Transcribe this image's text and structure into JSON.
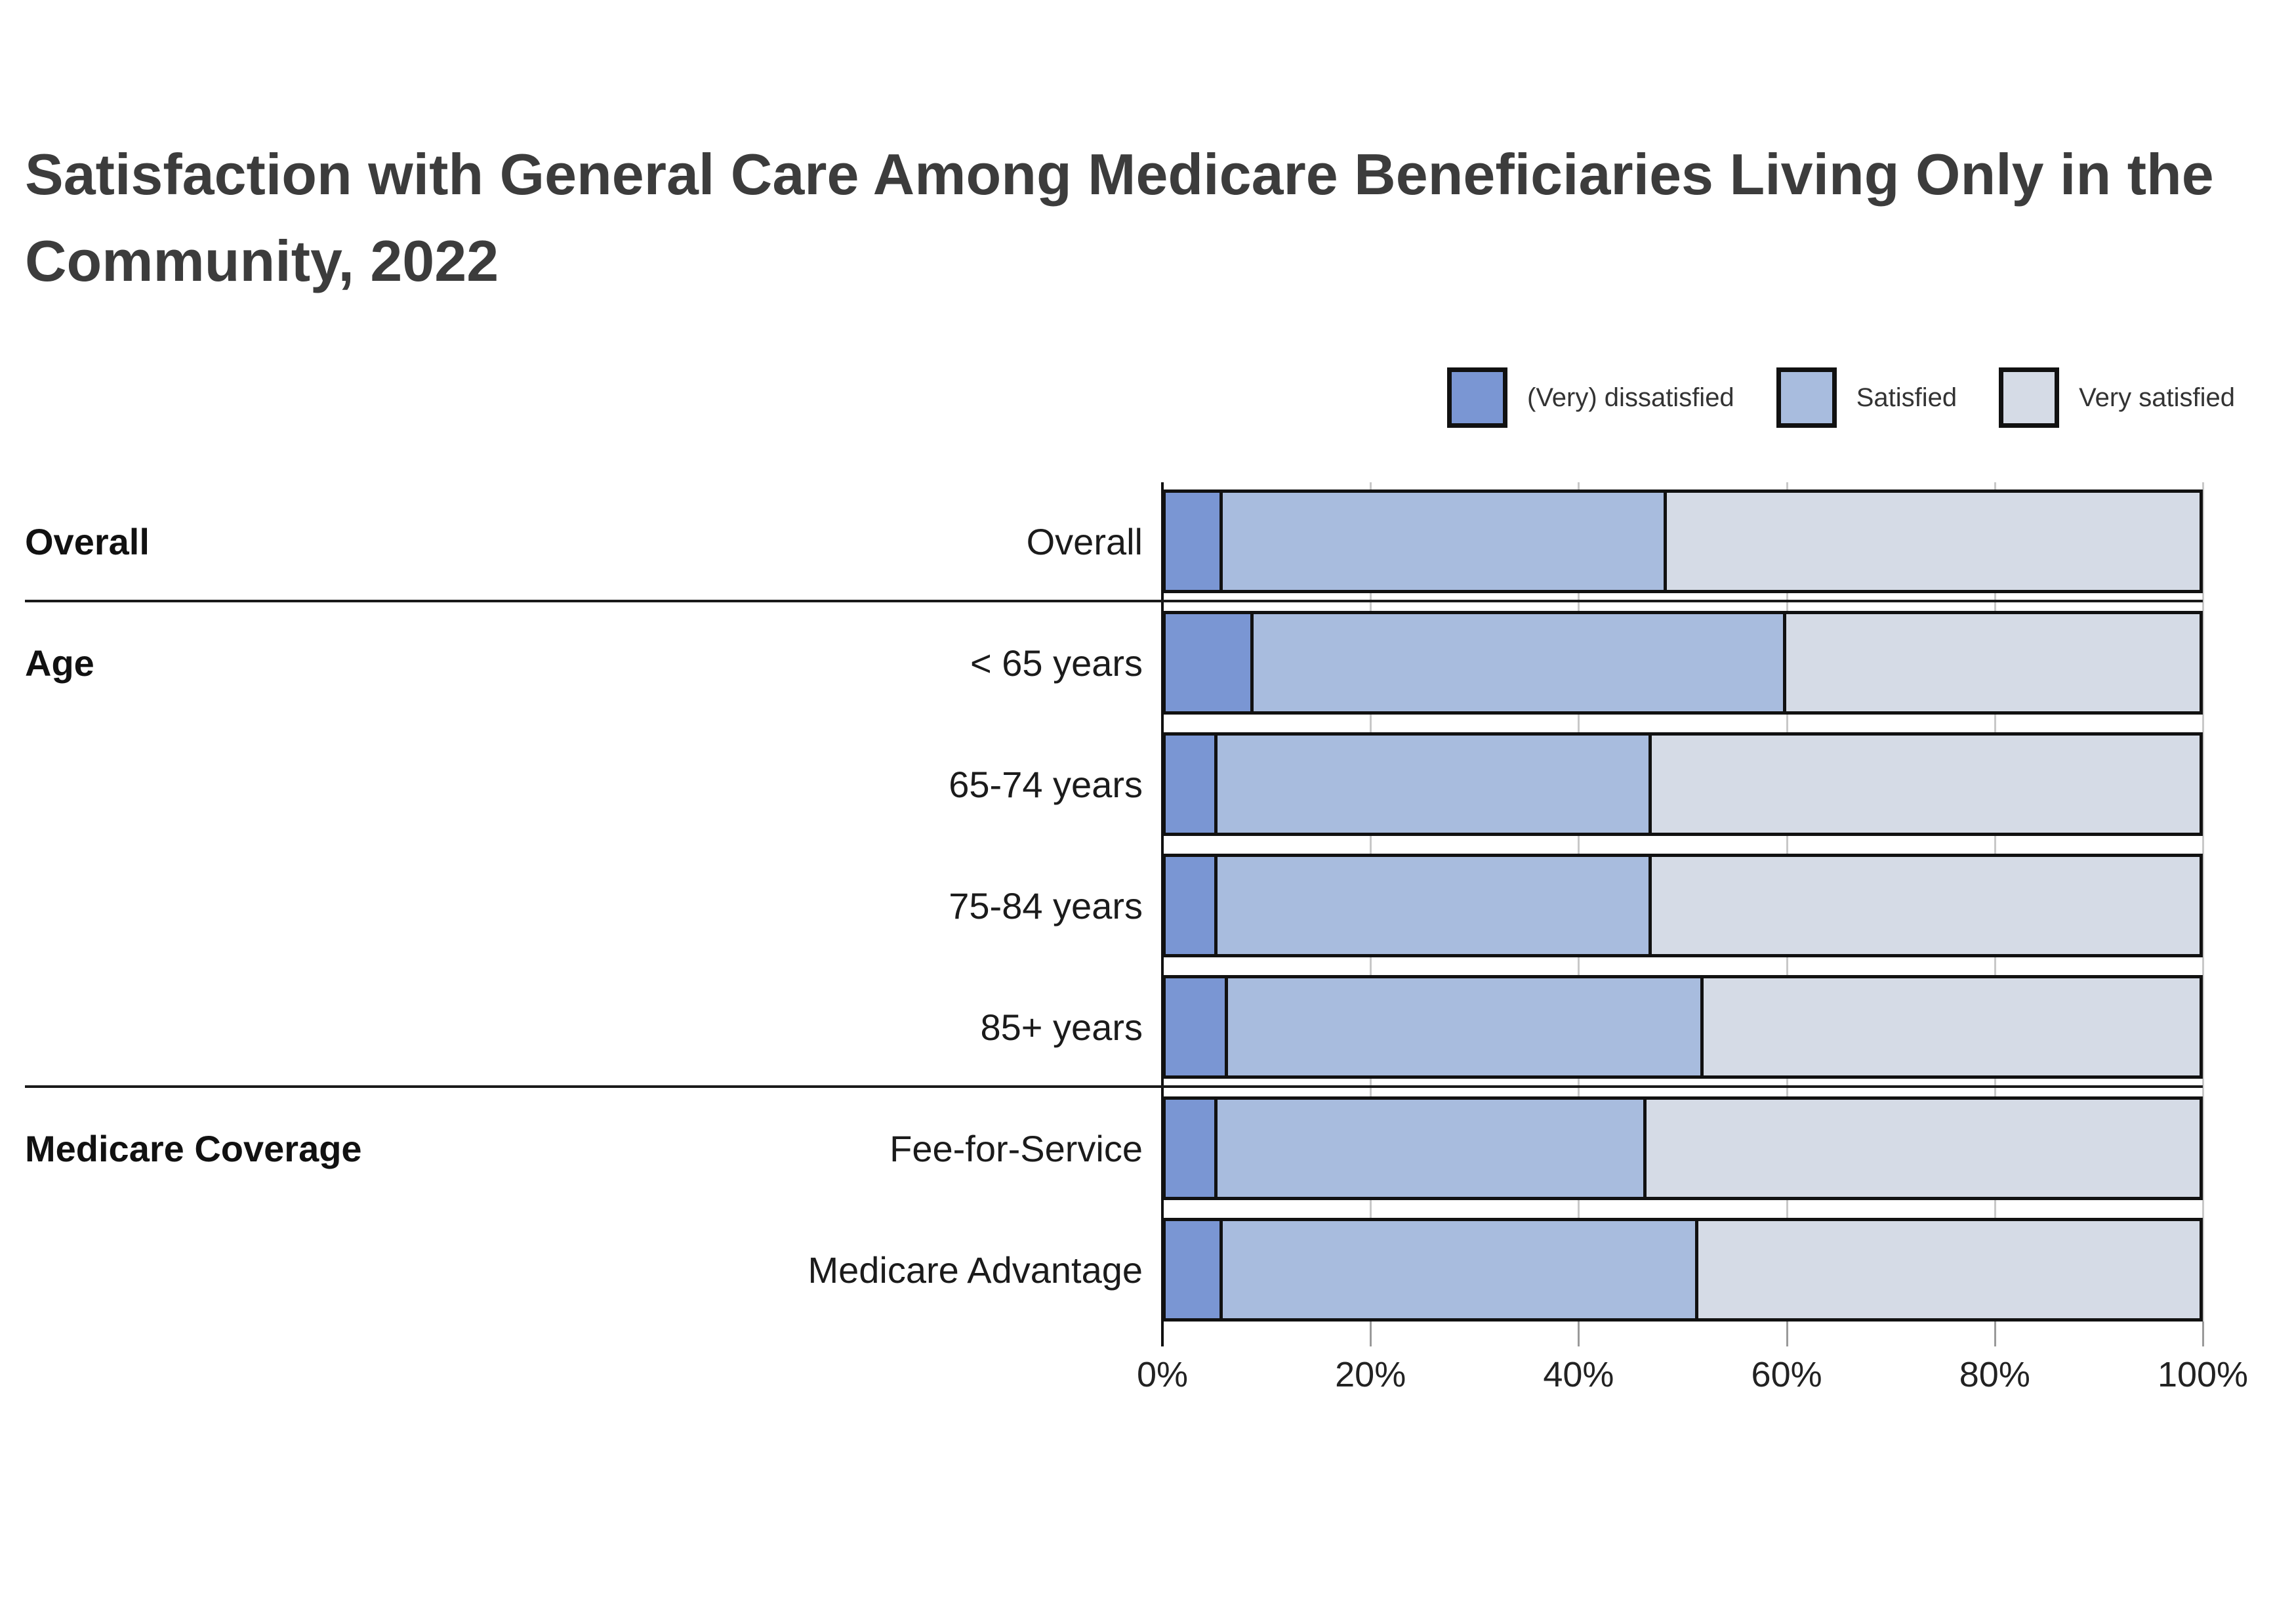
{
  "title": "Satisfaction with General Care Among Medicare Beneficiaries Living Only in the Community, 2022",
  "legend": {
    "items": [
      {
        "label": "(Very) dissatisfied",
        "color": "#7A96D3"
      },
      {
        "label": "Satisfied",
        "color": "#A8BCDE"
      },
      {
        "label": "Very satisfied",
        "color": "#D5DBE6"
      }
    ]
  },
  "chart_data": {
    "type": "bar",
    "orientation": "horizontal",
    "stacked": true,
    "unit": "%",
    "title": "Satisfaction with General Care Among Medicare Beneficiaries Living Only in the Community, 2022",
    "categories": [
      "Overall",
      "< 65 years",
      "65-74 years",
      "75-84 years",
      "85+ years",
      "Fee-for-Service",
      "Medicare Advantage"
    ],
    "groups": [
      {
        "label": "Overall",
        "rows": [
          0
        ]
      },
      {
        "label": "Age",
        "rows": [
          1,
          2,
          3,
          4
        ]
      },
      {
        "label": "Medicare Coverage",
        "rows": [
          5,
          6
        ]
      }
    ],
    "series": [
      {
        "name": "(Very) dissatisfied",
        "color": "#7A96D3",
        "values": [
          5.5,
          8.5,
          5,
          5,
          6,
          5,
          5.5
        ]
      },
      {
        "name": "Satisfied",
        "color": "#A8BCDE",
        "values": [
          43,
          51.5,
          42,
          42,
          46,
          41.5,
          46
        ]
      },
      {
        "name": "Very satisfied",
        "color": "#D5DBE6",
        "values": [
          51.5,
          40,
          53,
          53,
          48,
          53.5,
          48.5
        ]
      }
    ],
    "xlabel": "",
    "ylabel": "",
    "x_axis": {
      "min": 0,
      "max": 100,
      "tick_values": [
        0,
        20,
        40,
        60,
        80,
        100
      ],
      "tick_labels": [
        "0%",
        "20%",
        "40%",
        "60%",
        "80%",
        "100%"
      ]
    },
    "grid": true,
    "legend_position": "top-right",
    "bar_border_color": "#111111"
  }
}
